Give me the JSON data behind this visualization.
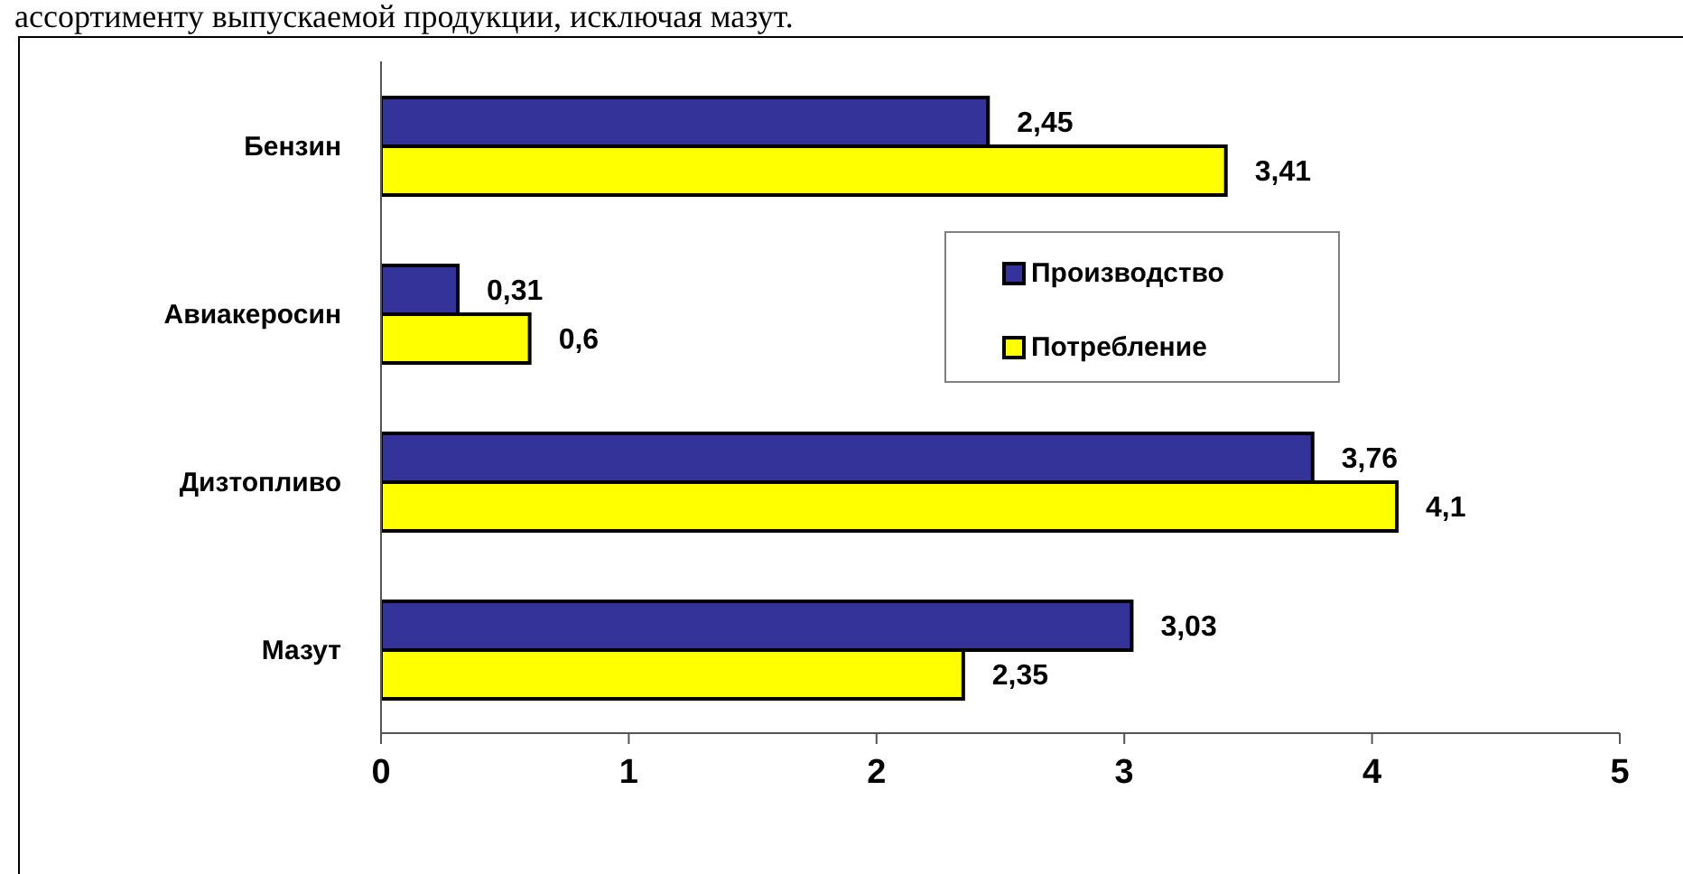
{
  "chart_data": {
    "type": "bar",
    "orientation": "horizontal",
    "annotations": [
      "ассортименту выпускаемой продукции, исключая мазут."
    ],
    "categories": [
      "Бензин",
      "Авиакеросин",
      "Дизтопливо",
      "Мазут"
    ],
    "series": [
      {
        "name": "Производство",
        "color": "#333399",
        "values": [
          2.45,
          0.31,
          3.76,
          3.03
        ],
        "value_labels": [
          "2,45",
          "0,31",
          "3,76",
          "3,03"
        ]
      },
      {
        "name": "Потребление",
        "color": "#ffff00",
        "values": [
          3.41,
          0.6,
          4.1,
          2.35
        ],
        "value_labels": [
          "3,41",
          "0,6",
          "4,1",
          "2,35"
        ]
      }
    ],
    "xlim": [
      0,
      5
    ],
    "xticks": [
      0,
      1,
      2,
      3,
      4,
      5
    ],
    "legend": "right"
  }
}
